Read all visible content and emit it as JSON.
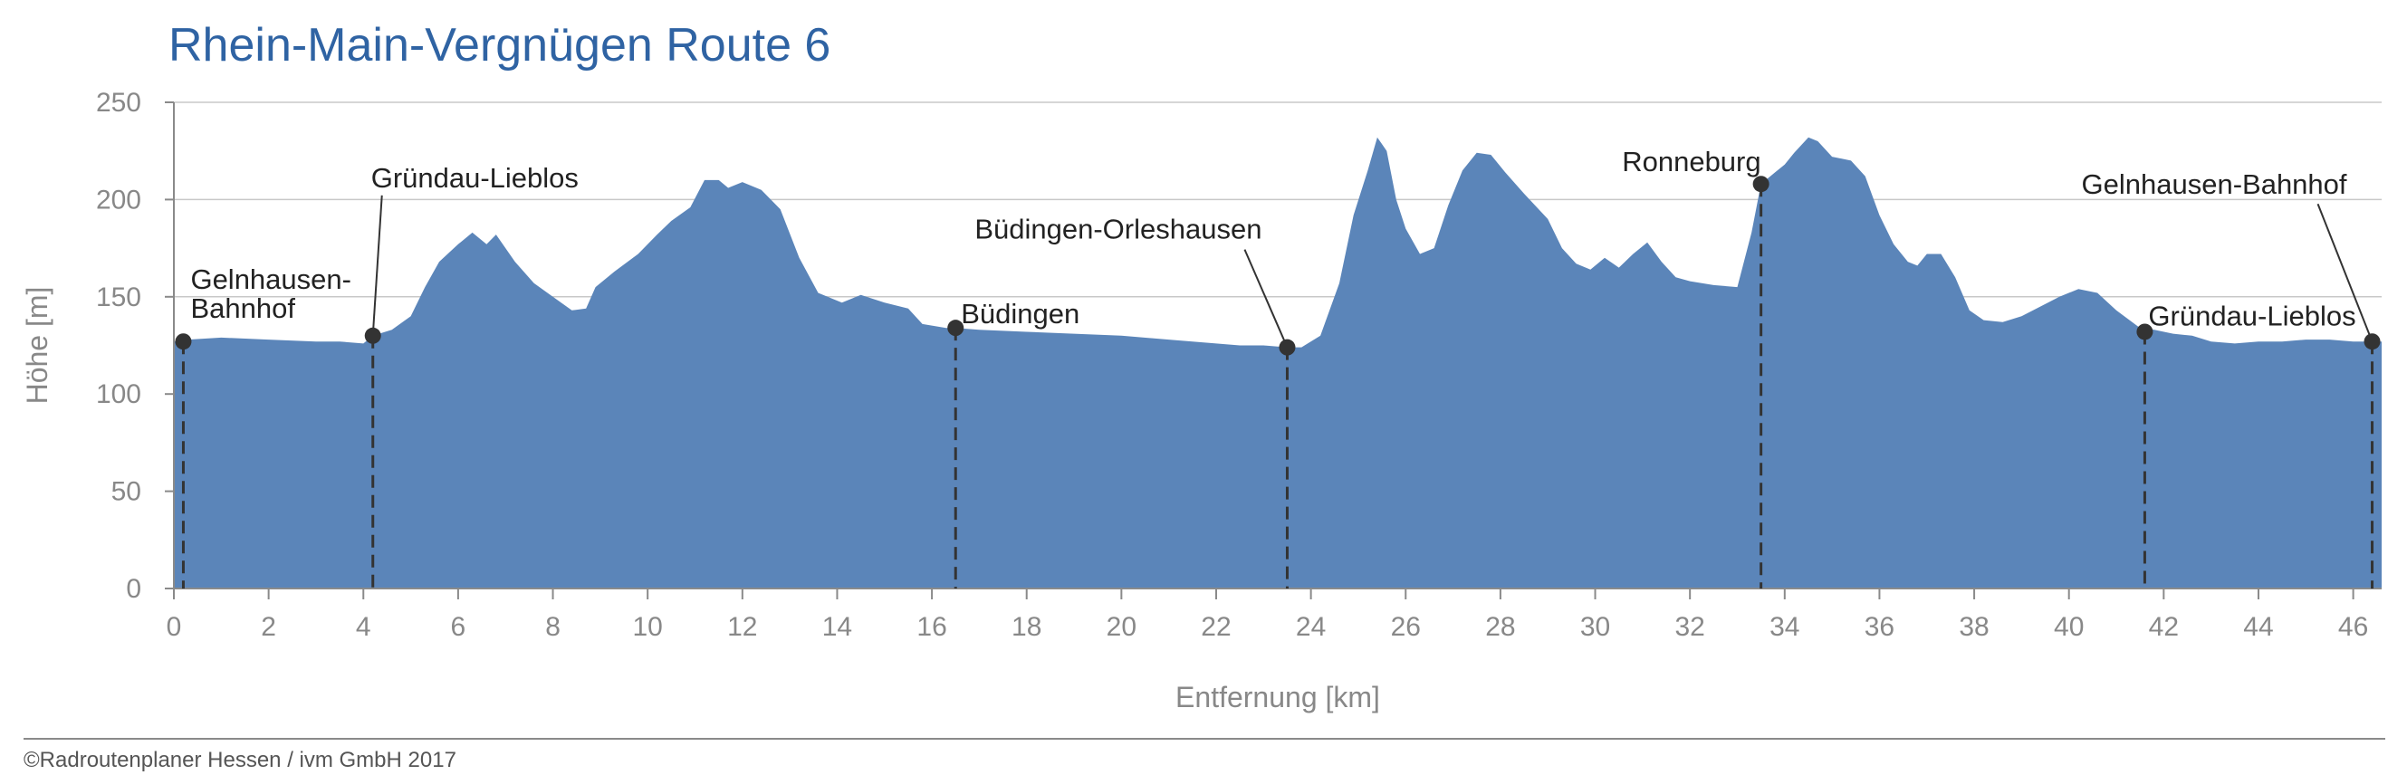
{
  "chart_data": {
    "type": "area",
    "title": "Rhein-Main-Vergnügen Route 6",
    "xlabel": "Entfernung [km]",
    "ylabel": "Höhe [m]",
    "xlim": [
      0,
      46.6
    ],
    "ylim": [
      0,
      250
    ],
    "x_ticks": [
      0,
      2,
      4,
      6,
      8,
      10,
      12,
      14,
      16,
      18,
      20,
      22,
      24,
      26,
      28,
      30,
      32,
      34,
      36,
      38,
      40,
      42,
      44,
      46
    ],
    "y_ticks": [
      0,
      50,
      100,
      150,
      200,
      250
    ],
    "grid": "horizontal",
    "fill_color": "#5b85b9",
    "profile": [
      [
        0.0,
        127
      ],
      [
        0.3,
        128
      ],
      [
        1.0,
        129
      ],
      [
        2.0,
        128
      ],
      [
        3.0,
        127
      ],
      [
        3.5,
        127
      ],
      [
        4.0,
        126
      ],
      [
        4.2,
        130
      ],
      [
        4.6,
        133
      ],
      [
        5.0,
        140
      ],
      [
        5.3,
        155
      ],
      [
        5.6,
        168
      ],
      [
        6.0,
        177
      ],
      [
        6.3,
        183
      ],
      [
        6.6,
        177
      ],
      [
        6.8,
        182
      ],
      [
        7.2,
        168
      ],
      [
        7.6,
        157
      ],
      [
        8.0,
        150
      ],
      [
        8.4,
        143
      ],
      [
        8.7,
        144
      ],
      [
        8.9,
        155
      ],
      [
        9.3,
        163
      ],
      [
        9.8,
        172
      ],
      [
        10.2,
        182
      ],
      [
        10.5,
        189
      ],
      [
        10.9,
        196
      ],
      [
        11.2,
        210
      ],
      [
        11.5,
        210
      ],
      [
        11.7,
        206
      ],
      [
        12.0,
        209
      ],
      [
        12.4,
        205
      ],
      [
        12.8,
        195
      ],
      [
        13.2,
        170
      ],
      [
        13.6,
        152
      ],
      [
        14.1,
        147
      ],
      [
        14.5,
        151
      ],
      [
        15.0,
        147
      ],
      [
        15.5,
        144
      ],
      [
        15.8,
        136
      ],
      [
        16.3,
        134
      ],
      [
        16.5,
        134
      ],
      [
        17.0,
        133
      ],
      [
        18.0,
        132
      ],
      [
        19.0,
        131
      ],
      [
        20.0,
        130
      ],
      [
        21.0,
        128
      ],
      [
        22.0,
        126
      ],
      [
        22.5,
        125
      ],
      [
        23.0,
        125
      ],
      [
        23.5,
        124
      ],
      [
        23.8,
        124
      ],
      [
        24.2,
        130
      ],
      [
        24.6,
        157
      ],
      [
        24.9,
        192
      ],
      [
        25.2,
        215
      ],
      [
        25.4,
        232
      ],
      [
        25.6,
        225
      ],
      [
        25.8,
        200
      ],
      [
        26.0,
        185
      ],
      [
        26.3,
        172
      ],
      [
        26.6,
        175
      ],
      [
        26.9,
        197
      ],
      [
        27.2,
        215
      ],
      [
        27.5,
        224
      ],
      [
        27.8,
        223
      ],
      [
        28.1,
        214
      ],
      [
        28.5,
        203
      ],
      [
        29.0,
        190
      ],
      [
        29.3,
        175
      ],
      [
        29.6,
        167
      ],
      [
        29.9,
        164
      ],
      [
        30.2,
        170
      ],
      [
        30.5,
        165
      ],
      [
        30.8,
        172
      ],
      [
        31.1,
        178
      ],
      [
        31.4,
        168
      ],
      [
        31.7,
        160
      ],
      [
        32.0,
        158
      ],
      [
        32.5,
        156
      ],
      [
        33.0,
        155
      ],
      [
        33.3,
        183
      ],
      [
        33.5,
        208
      ],
      [
        33.8,
        214
      ],
      [
        34.0,
        218
      ],
      [
        34.2,
        224
      ],
      [
        34.5,
        232
      ],
      [
        34.7,
        230
      ],
      [
        35.0,
        222
      ],
      [
        35.4,
        220
      ],
      [
        35.7,
        212
      ],
      [
        36.0,
        192
      ],
      [
        36.3,
        177
      ],
      [
        36.6,
        168
      ],
      [
        36.8,
        166
      ],
      [
        37.0,
        172
      ],
      [
        37.3,
        172
      ],
      [
        37.6,
        160
      ],
      [
        37.9,
        143
      ],
      [
        38.2,
        138
      ],
      [
        38.6,
        137
      ],
      [
        39.0,
        140
      ],
      [
        39.4,
        145
      ],
      [
        39.8,
        150
      ],
      [
        40.2,
        154
      ],
      [
        40.6,
        152
      ],
      [
        41.0,
        143
      ],
      [
        41.5,
        134
      ],
      [
        41.8,
        133
      ],
      [
        42.2,
        131
      ],
      [
        42.6,
        130
      ],
      [
        43.0,
        127
      ],
      [
        43.5,
        126
      ],
      [
        44.0,
        127
      ],
      [
        44.5,
        127
      ],
      [
        45.0,
        128
      ],
      [
        45.5,
        128
      ],
      [
        46.0,
        127
      ],
      [
        46.4,
        127
      ],
      [
        46.6,
        127
      ]
    ],
    "waypoints": [
      {
        "name_lines": [
          "Gelnhausen-",
          "Bahnhof"
        ],
        "km": 0.2,
        "elevation": 127
      },
      {
        "name_lines": [
          "Gründau-Lieblos"
        ],
        "km": 4.2,
        "elevation": 130
      },
      {
        "name_lines": [
          "Büdingen"
        ],
        "km": 16.5,
        "elevation": 134
      },
      {
        "name_lines": [
          "Büdingen-Orleshausen"
        ],
        "km": 23.5,
        "elevation": 124
      },
      {
        "name_lines": [
          "Ronneburg"
        ],
        "km": 33.5,
        "elevation": 208
      },
      {
        "name_lines": [
          "Gründau-Lieblos"
        ],
        "km": 41.6,
        "elevation": 132
      },
      {
        "name_lines": [
          "Gelnhausen-Bahnhof"
        ],
        "km": 46.4,
        "elevation": 127
      }
    ]
  },
  "footer": {
    "credit": "©Radroutenplaner Hessen / ivm GmbH 2017"
  }
}
